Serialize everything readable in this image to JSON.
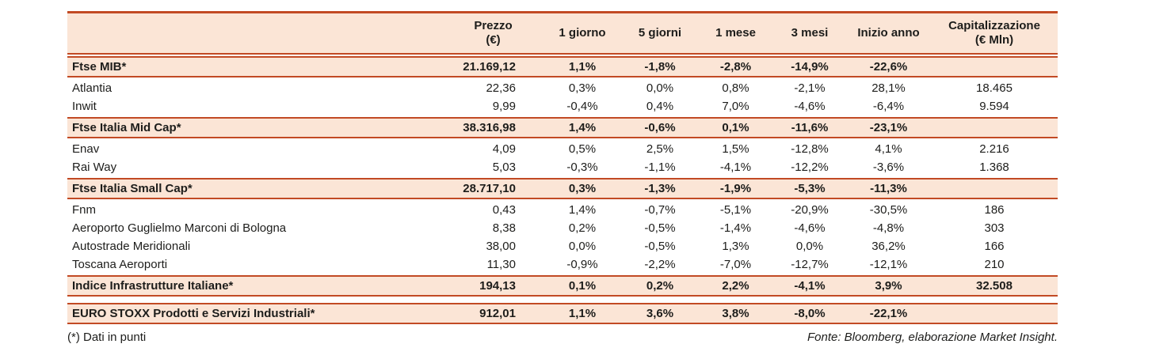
{
  "colors": {
    "accent_line": "#C24A24",
    "band_background": "#FBE5D6",
    "text": "#1d1d1b"
  },
  "table": {
    "header": {
      "prezzo_l1": "Prezzo",
      "prezzo_l2": "(€)",
      "g1": "1 giorno",
      "g5": "5 giorni",
      "m1": "1 mese",
      "m3": "3 mesi",
      "ytd": "Inizio anno",
      "cap_l1": "Capitalizzazione",
      "cap_l2": "(€ Mln)"
    },
    "rows": [
      {
        "type": "section",
        "name": "Ftse MIB*",
        "prezzo": "21.169,12",
        "g1": "1,1%",
        "g5": "-1,8%",
        "m1": "-2,8%",
        "m3": "-14,9%",
        "ytd": "-22,6%",
        "cap": ""
      },
      {
        "type": "stock",
        "name": "Atlantia",
        "prezzo": "22,36",
        "g1": "0,3%",
        "g5": "0,0%",
        "m1": "0,8%",
        "m3": "-2,1%",
        "ytd": "28,1%",
        "cap": "18.465"
      },
      {
        "type": "stock",
        "name": "Inwit",
        "prezzo": "9,99",
        "g1": "-0,4%",
        "g5": "0,4%",
        "m1": "7,0%",
        "m3": "-4,6%",
        "ytd": "-6,4%",
        "cap": "9.594"
      },
      {
        "type": "section",
        "name": "Ftse Italia Mid Cap*",
        "prezzo": "38.316,98",
        "g1": "1,4%",
        "g5": "-0,6%",
        "m1": "0,1%",
        "m3": "-11,6%",
        "ytd": "-23,1%",
        "cap": ""
      },
      {
        "type": "stock",
        "name": "Enav",
        "prezzo": "4,09",
        "g1": "0,5%",
        "g5": "2,5%",
        "m1": "1,5%",
        "m3": "-12,8%",
        "ytd": "4,1%",
        "cap": "2.216"
      },
      {
        "type": "stock",
        "name": "Rai Way",
        "prezzo": "5,03",
        "g1": "-0,3%",
        "g5": "-1,1%",
        "m1": "-4,1%",
        "m3": "-12,2%",
        "ytd": "-3,6%",
        "cap": "1.368"
      },
      {
        "type": "section",
        "name": "Ftse Italia Small Cap*",
        "prezzo": "28.717,10",
        "g1": "0,3%",
        "g5": "-1,3%",
        "m1": "-1,9%",
        "m3": "-5,3%",
        "ytd": "-11,3%",
        "cap": ""
      },
      {
        "type": "stock",
        "name": "Fnm",
        "prezzo": "0,43",
        "g1": "1,4%",
        "g5": "-0,7%",
        "m1": "-5,1%",
        "m3": "-20,9%",
        "ytd": "-30,5%",
        "cap": "186"
      },
      {
        "type": "stock",
        "name": "Aeroporto Guglielmo Marconi di Bologna",
        "prezzo": "8,38",
        "g1": "0,2%",
        "g5": "-0,5%",
        "m1": "-1,4%",
        "m3": "-4,6%",
        "ytd": "-4,8%",
        "cap": "303"
      },
      {
        "type": "stock",
        "name": "Autostrade Meridionali",
        "prezzo": "38,00",
        "g1": "0,0%",
        "g5": "-0,5%",
        "m1": "1,3%",
        "m3": "0,0%",
        "ytd": "36,2%",
        "cap": "166"
      },
      {
        "type": "stock",
        "name": "Toscana Aeroporti",
        "prezzo": "11,30",
        "g1": "-0,9%",
        "g5": "-2,2%",
        "m1": "-7,0%",
        "m3": "-12,7%",
        "ytd": "-12,1%",
        "cap": "210"
      },
      {
        "type": "section",
        "name": "Indice Infrastrutture Italiane*",
        "prezzo": "194,13",
        "g1": "0,1%",
        "g5": "0,2%",
        "m1": "2,2%",
        "m3": "-4,1%",
        "ytd": "3,9%",
        "cap": "32.508"
      },
      {
        "type": "section",
        "gap_before": true,
        "name": "EURO STOXX Prodotti e Servizi Industriali*",
        "prezzo": "912,01",
        "g1": "1,1%",
        "g5": "3,6%",
        "m1": "3,8%",
        "m3": "-8,0%",
        "ytd": "-22,1%",
        "cap": ""
      }
    ]
  },
  "footer": {
    "note": "(*) Dati in punti",
    "source": "Fonte: Bloomberg, elaborazione Market Insight."
  }
}
